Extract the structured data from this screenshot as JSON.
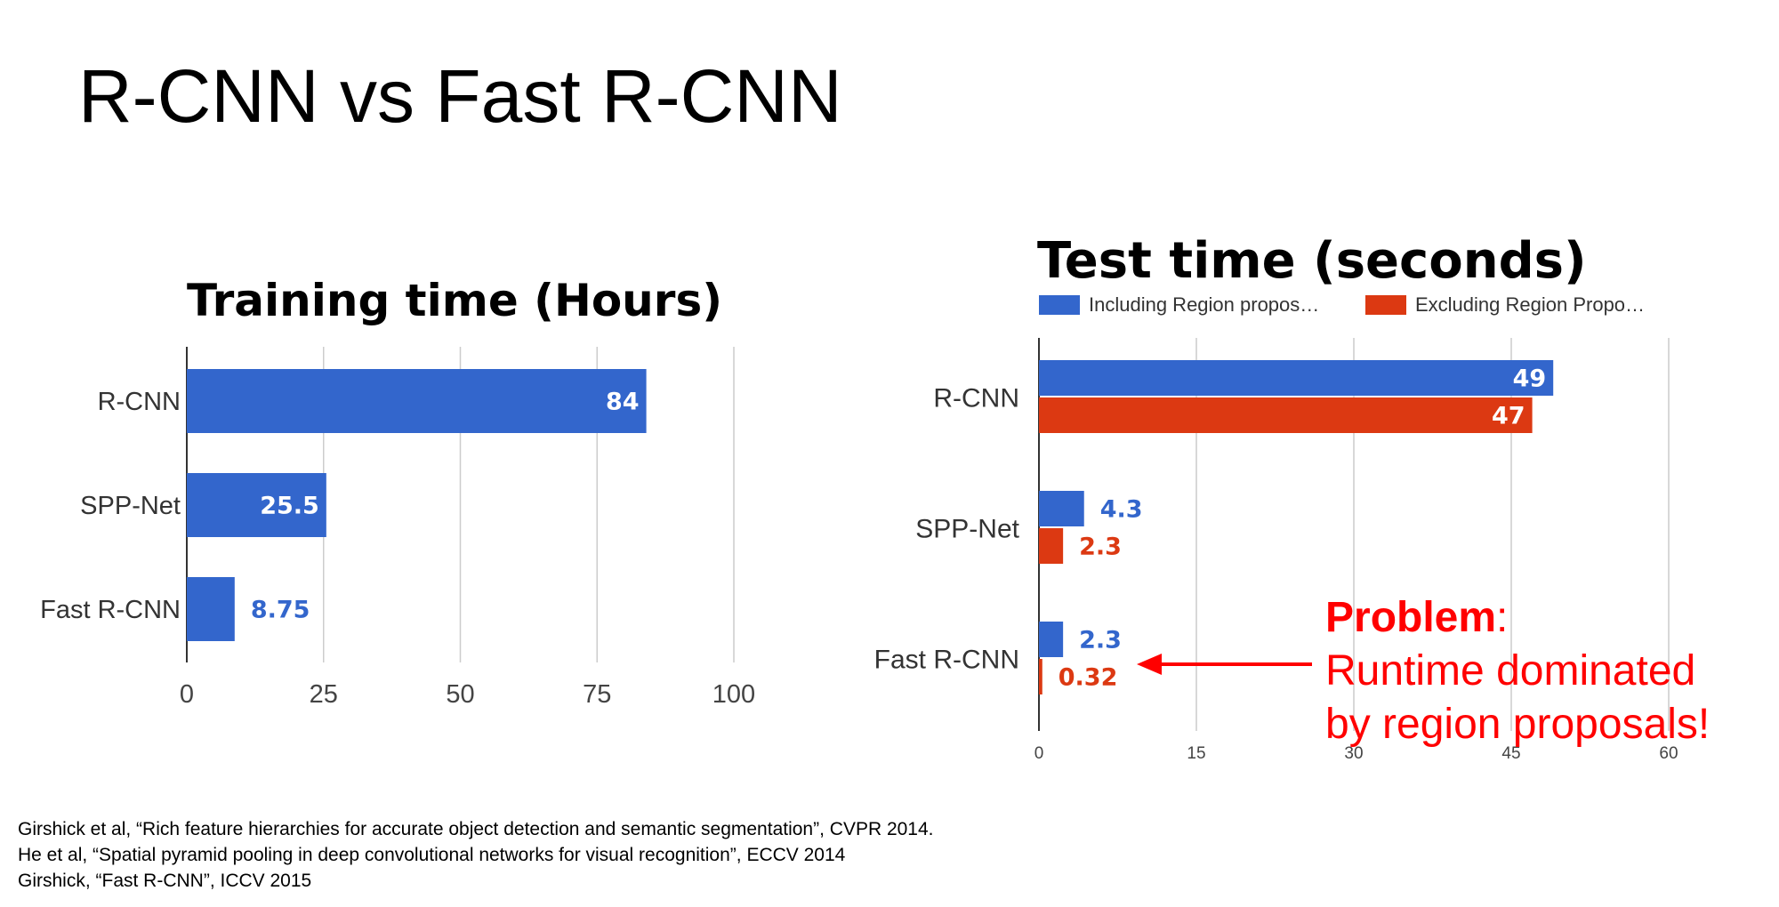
{
  "slide": {
    "title": "R-CNN vs Fast R-CNN",
    "annotation": {
      "bold": "Problem",
      "colon": ":",
      "lines": [
        "Runtime dominated",
        "by region proposals!"
      ],
      "color": "#ff0000"
    },
    "references": [
      "Girshick et al, “Rich feature hierarchies for accurate object detection and semantic segmentation”, CVPR 2014.",
      "He et al, “Spatial pyramid pooling in deep convolutional networks for visual recognition”, ECCV 2014",
      "Girshick, “Fast R-CNN”, ICCV 2015"
    ]
  },
  "chart_data": [
    {
      "type": "bar",
      "orientation": "horizontal",
      "title": "Training time (Hours)",
      "categories": [
        "R-CNN",
        "SPP-Net",
        "Fast R-CNN"
      ],
      "series": [
        {
          "name": "",
          "values": [
            84,
            25.5,
            8.75
          ],
          "labels": [
            "84",
            "25.5",
            "8.75"
          ],
          "color": "#3366cc"
        }
      ],
      "xlim": [
        0,
        100
      ],
      "xticks": [
        0,
        25,
        50,
        75,
        100
      ],
      "grid": true,
      "legend": "none"
    },
    {
      "type": "bar",
      "orientation": "horizontal",
      "title": "Test time (seconds)",
      "categories": [
        "R-CNN",
        "SPP-Net",
        "Fast R-CNN"
      ],
      "series": [
        {
          "name": "Including Region propos…",
          "values": [
            49,
            4.3,
            2.3
          ],
          "labels": [
            "49",
            "4.3",
            "2.3"
          ],
          "color": "#3366cc"
        },
        {
          "name": "Excluding Region Propo…",
          "values": [
            47,
            2.3,
            0.32
          ],
          "labels": [
            "47",
            "2.3",
            "0.32"
          ],
          "color": "#dc3912"
        }
      ],
      "xlim": [
        0,
        60
      ],
      "xticks": [
        0,
        15,
        30,
        45,
        60
      ],
      "grid": true,
      "legend": "top"
    }
  ]
}
